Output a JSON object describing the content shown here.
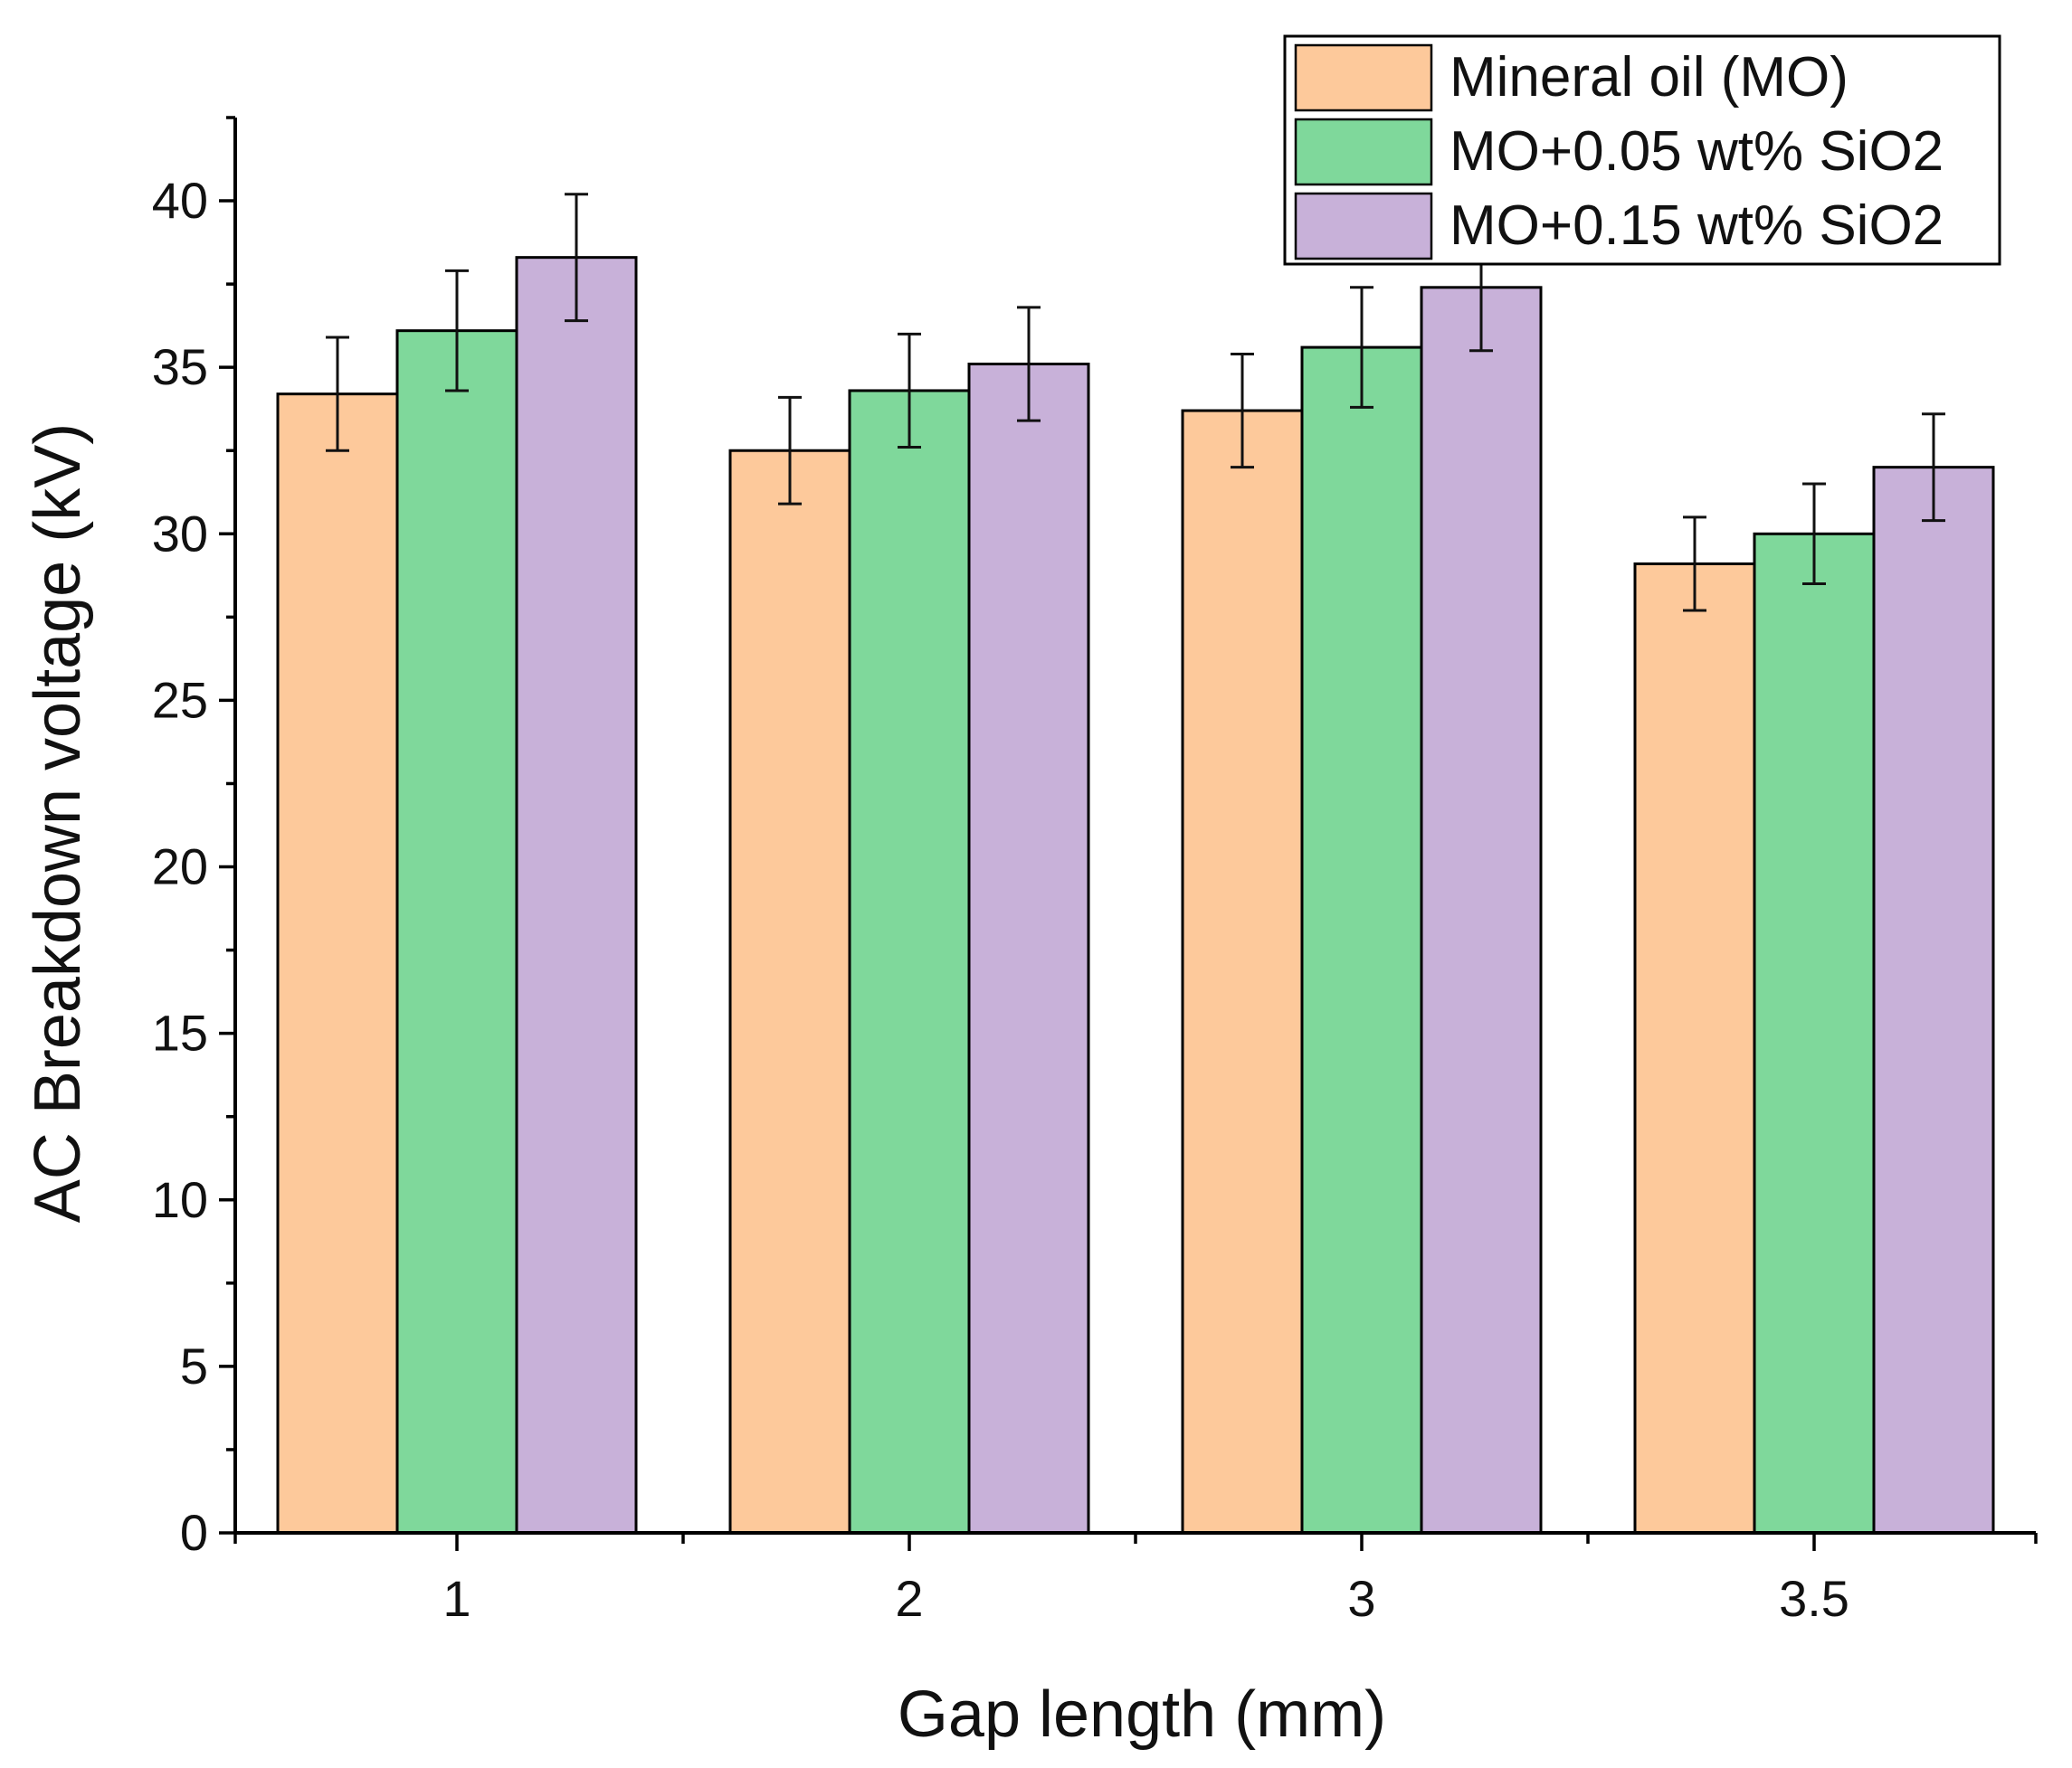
{
  "chart_data": {
    "type": "bar",
    "title": "",
    "xlabel": "Gap length (mm)",
    "ylabel": "AC Breakdown voltage (kV)",
    "categories": [
      "1",
      "2",
      "3",
      "3.5"
    ],
    "ylim": [
      0,
      42.5
    ],
    "yticks": [
      0,
      5,
      10,
      15,
      20,
      25,
      30,
      35,
      40
    ],
    "ytick_labels": [
      "0",
      "5",
      "10",
      "15",
      "20",
      "25",
      "30",
      "35",
      "40"
    ],
    "legend_position": "top-right",
    "series": [
      {
        "name": "Mineral oil (MO)",
        "color": "#FDC99B",
        "values": [
          34.2,
          32.5,
          33.7,
          29.1
        ],
        "errors": [
          1.7,
          1.6,
          1.7,
          1.4
        ]
      },
      {
        "name": "MO+0.05 wt% SiO2",
        "color": "#7FD89B",
        "values": [
          36.1,
          34.3,
          35.6,
          30.0
        ],
        "errors": [
          1.8,
          1.7,
          1.8,
          1.5
        ]
      },
      {
        "name": "MO+0.15 wt% SiO2",
        "color": "#C8B1D9",
        "values": [
          38.3,
          35.1,
          37.4,
          32.0
        ],
        "errors": [
          1.9,
          1.7,
          1.9,
          1.6
        ]
      }
    ]
  }
}
